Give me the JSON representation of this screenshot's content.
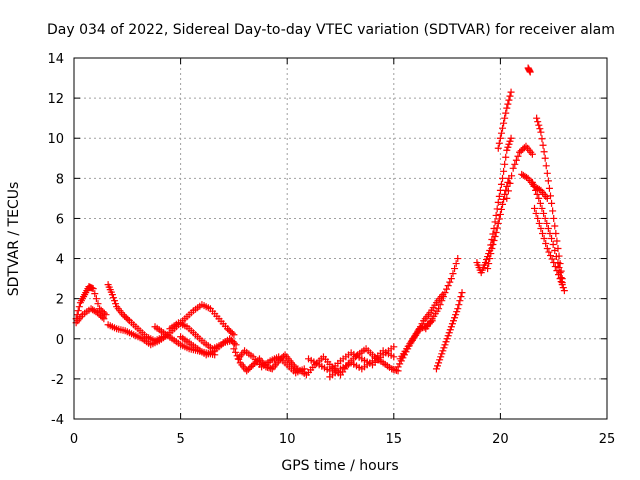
{
  "chart_data": {
    "type": "scatter",
    "title": "Day 034 of 2022, Sidereal Day-to-day VTEC variation (SDTVAR) for receiver alam",
    "xlabel": "GPS time / hours",
    "ylabel": "SDTVAR / TECUs",
    "xlim": [
      0,
      25
    ],
    "ylim": [
      -4,
      14
    ],
    "xticks": [
      "0",
      "5",
      "10",
      "15",
      "20",
      "25"
    ],
    "yticks": [
      "-4",
      "-2",
      "0",
      "2",
      "4",
      "6",
      "8",
      "10",
      "12",
      "14"
    ],
    "grid": true,
    "marker": "+",
    "color": "#ff0000",
    "series": [
      {
        "name": "SDTVAR",
        "segments": [
          {
            "x": [
              0.1,
              0.3,
              0.5,
              0.7,
              0.9,
              1.2,
              1.5
            ],
            "y": [
              1.0,
              1.8,
              2.2,
              2.6,
              2.5,
              1.5,
              1.2
            ]
          },
          {
            "x": [
              0.1,
              0.4,
              0.8,
              1.1,
              1.4
            ],
            "y": [
              0.8,
              1.2,
              1.5,
              1.3,
              1.0
            ]
          },
          {
            "x": [
              1.6,
              1.8,
              2.0,
              2.3,
              2.6,
              3.0,
              3.4,
              3.8,
              4.2
            ],
            "y": [
              2.7,
              2.2,
              1.6,
              1.2,
              0.9,
              0.5,
              0.1,
              -0.1,
              0.1
            ]
          },
          {
            "x": [
              1.6,
              2.0,
              2.4,
              2.8,
              3.2,
              3.6,
              4.0,
              4.4,
              4.8,
              5.2,
              5.6,
              6.0,
              6.4,
              6.8,
              7.2,
              7.5
            ],
            "y": [
              0.7,
              0.5,
              0.4,
              0.2,
              0.0,
              -0.3,
              -0.1,
              0.2,
              0.6,
              1.0,
              1.4,
              1.7,
              1.5,
              1.0,
              0.5,
              0.2
            ]
          },
          {
            "x": [
              3.8,
              4.2,
              4.6,
              5.0,
              5.4,
              5.8,
              6.2,
              6.6
            ],
            "y": [
              0.6,
              0.3,
              0.0,
              -0.3,
              -0.5,
              -0.6,
              -0.7,
              -0.8
            ]
          },
          {
            "x": [
              4.5,
              4.9,
              5.3,
              5.7,
              6.1,
              6.5,
              6.9,
              7.3,
              7.6
            ],
            "y": [
              0.5,
              0.8,
              0.6,
              0.2,
              -0.2,
              -0.5,
              -0.3,
              0.0,
              -0.3
            ]
          },
          {
            "x": [
              5.0,
              5.4,
              5.8,
              6.2,
              6.6,
              7.0,
              7.4
            ],
            "y": [
              0.1,
              -0.2,
              -0.5,
              -0.8,
              -0.6,
              -0.2,
              -0.1
            ]
          },
          {
            "x": [
              7.5,
              7.8,
              8.1,
              8.4,
              8.7,
              9.0,
              9.3,
              9.6,
              9.9,
              10.2,
              10.5
            ],
            "y": [
              -0.5,
              -1.2,
              -1.6,
              -1.3,
              -1.0,
              -1.4,
              -1.5,
              -1.1,
              -0.8,
              -1.2,
              -1.6
            ]
          },
          {
            "x": [
              7.7,
              8.0,
              8.4,
              8.8,
              9.2,
              9.6,
              10.0,
              10.4,
              10.8
            ],
            "y": [
              -1.0,
              -0.6,
              -0.9,
              -1.4,
              -1.1,
              -0.9,
              -1.3,
              -1.7,
              -1.5
            ]
          },
          {
            "x": [
              10.5,
              10.9,
              11.3,
              11.7,
              12.1,
              12.5,
              12.9,
              13.3,
              13.7,
              14.1,
              14.5,
              14.9,
              15.2
            ],
            "y": [
              -1.5,
              -1.8,
              -1.3,
              -0.9,
              -1.4,
              -1.8,
              -1.2,
              -0.8,
              -0.5,
              -0.9,
              -1.2,
              -1.5,
              -1.6
            ]
          },
          {
            "x": [
              11.0,
              11.5,
              12.0,
              12.5,
              13.0,
              13.5,
              14.0,
              14.5,
              15.0
            ],
            "y": [
              -1.0,
              -1.3,
              -1.6,
              -1.1,
              -0.7,
              -1.0,
              -1.3,
              -0.8,
              -0.4
            ]
          },
          {
            "x": [
              12.0,
              12.5,
              13.0,
              13.5,
              14.0,
              14.5,
              15.0
            ],
            "y": [
              -1.9,
              -1.5,
              -1.2,
              -1.5,
              -1.1,
              -0.6,
              -0.9
            ]
          },
          {
            "x": [
              15.2,
              15.5,
              15.8,
              16.1,
              16.4,
              16.7,
              17.0,
              17.3
            ],
            "y": [
              -1.4,
              -0.8,
              -0.2,
              0.3,
              0.9,
              1.3,
              1.8,
              2.2
            ]
          },
          {
            "x": [
              15.3,
              15.6,
              15.9,
              16.2,
              16.5,
              16.8
            ],
            "y": [
              -1.0,
              -0.5,
              0.0,
              0.5,
              0.6,
              0.9
            ]
          },
          {
            "x": [
              16.5,
              16.8,
              17.1,
              17.4,
              17.7,
              18.0
            ],
            "y": [
              0.5,
              1.0,
              1.5,
              2.3,
              3.0,
              4.0
            ]
          },
          {
            "x": [
              17.0,
              17.2,
              17.4,
              17.6,
              17.8,
              18.0,
              18.2
            ],
            "y": [
              -1.5,
              -0.9,
              -0.3,
              0.3,
              0.9,
              1.5,
              2.3
            ]
          },
          {
            "x": [
              18.9,
              19.1,
              19.3,
              19.5,
              19.7,
              19.9,
              20.1,
              20.3,
              20.5
            ],
            "y": [
              3.8,
              3.3,
              3.8,
              4.4,
              5.5,
              6.8,
              8.0,
              9.4,
              10.0
            ]
          },
          {
            "x": [
              19.4,
              19.6,
              19.8,
              20.0,
              20.2,
              20.4
            ],
            "y": [
              3.5,
              4.5,
              5.3,
              6.2,
              7.2,
              8.0
            ]
          },
          {
            "x": [
              19.9,
              20.1,
              20.3,
              20.5
            ],
            "y": [
              9.5,
              10.5,
              11.5,
              12.3
            ]
          },
          {
            "x": [
              20.3,
              20.6,
              20.9,
              21.2,
              21.5
            ],
            "y": [
              7.0,
              8.5,
              9.3,
              9.6,
              9.2
            ]
          },
          {
            "x": [
              21.0,
              21.3,
              21.6,
              21.9,
              22.2
            ],
            "y": [
              8.2,
              8.0,
              7.6,
              7.4,
              7.0
            ]
          },
          {
            "x": [
              21.3,
              21.4
            ],
            "y": [
              13.5,
              13.3
            ]
          },
          {
            "x": [
              21.5,
              21.8,
              22.1,
              22.4,
              22.7,
              22.9
            ],
            "y": [
              7.8,
              7.0,
              6.0,
              5.0,
              3.8,
              2.8
            ]
          },
          {
            "x": [
              21.7,
              21.9,
              22.1,
              22.3,
              22.5,
              22.7,
              22.9
            ],
            "y": [
              11.0,
              10.3,
              9.0,
              7.5,
              6.0,
              4.5,
              3.0
            ]
          },
          {
            "x": [
              21.6,
              21.9,
              22.2,
              22.5,
              22.8,
              23.0
            ],
            "y": [
              6.5,
              5.5,
              4.5,
              3.8,
              3.0,
              2.4
            ]
          }
        ]
      }
    ]
  }
}
